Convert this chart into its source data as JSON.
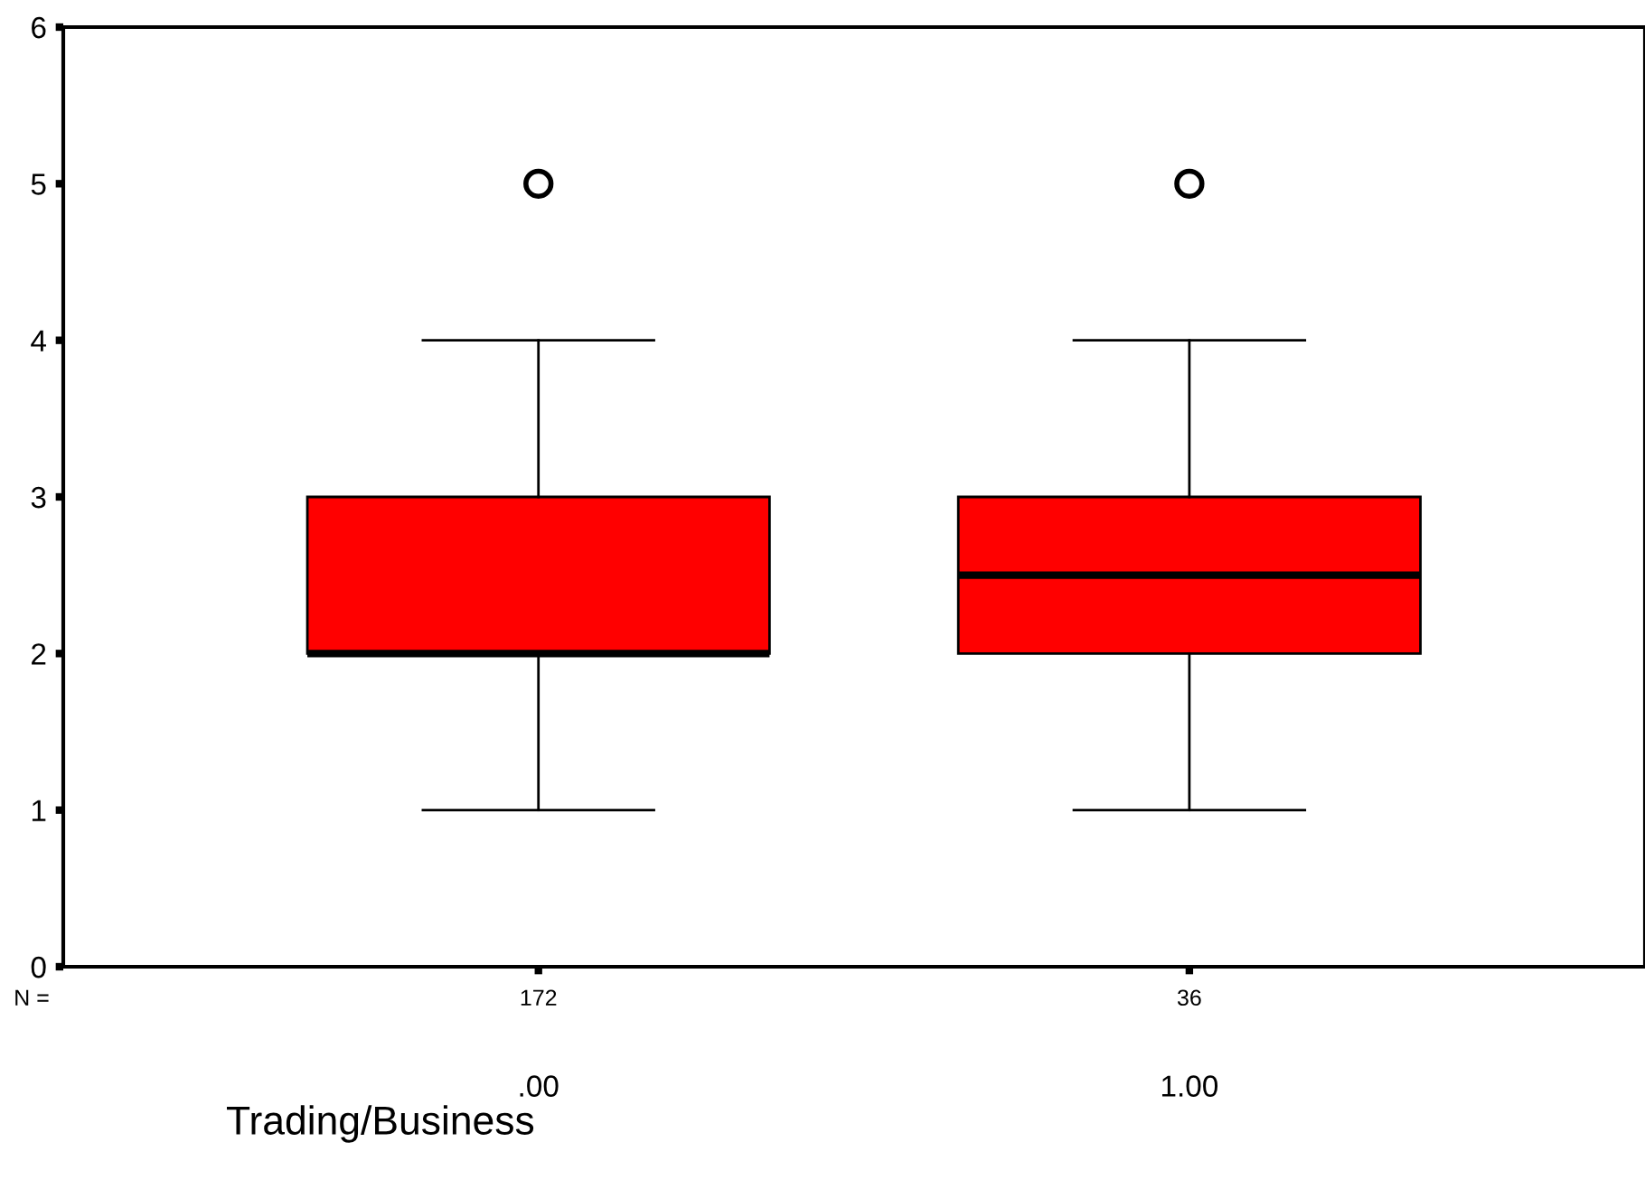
{
  "chart_data": {
    "type": "box",
    "xlabel": "Trading/Business",
    "categories": [
      ".00",
      "1.00"
    ],
    "boxes": [
      {
        "low": 1,
        "q1": 2,
        "median": 2,
        "q3": 3,
        "high": 4,
        "outliers": [
          5
        ]
      },
      {
        "low": 1,
        "q1": 2,
        "median": 2.5,
        "q3": 3,
        "high": 4,
        "outliers": [
          5
        ]
      }
    ],
    "color": "#ff0000",
    "ylim": [
      0,
      6
    ],
    "yticks": [
      0,
      1,
      2,
      3,
      4,
      5,
      6
    ],
    "grid": false,
    "legend": false,
    "annotations": [
      "N =",
      "172",
      "36"
    ]
  }
}
